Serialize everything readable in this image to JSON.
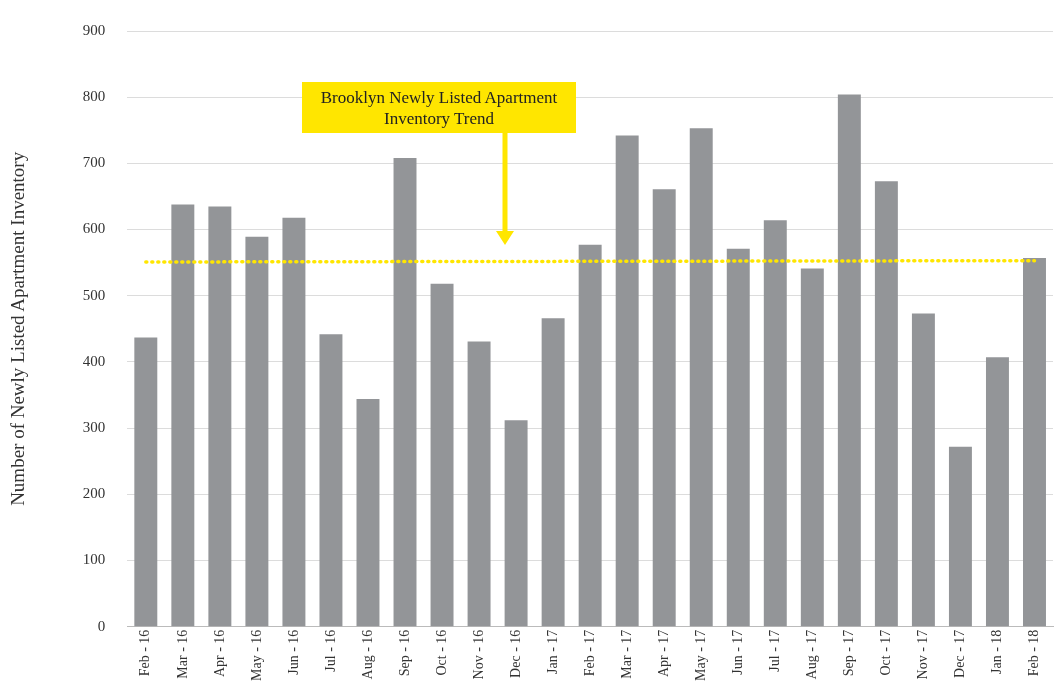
{
  "chart_data": {
    "type": "bar",
    "ylabel": "Number of Newly Listed Apartment Inventory",
    "categories": [
      "Feb - 16",
      "Mar - 16",
      "Apr - 16",
      "May - 16",
      "Jun - 16",
      "Jul - 16",
      "Aug - 16",
      "Sep - 16",
      "Oct - 16",
      "Nov - 16",
      "Dec - 16",
      "Jan - 17",
      "Feb - 17",
      "Mar - 17",
      "Apr - 17",
      "May - 17",
      "Jun - 17",
      "Jul - 17",
      "Aug - 17",
      "Sep - 17",
      "Oct - 17",
      "Nov - 17",
      "Dec - 17",
      "Jan - 18",
      "Feb - 18"
    ],
    "series": [
      {
        "color": "#939598",
        "values": [
          437,
          638,
          635,
          589,
          618,
          442,
          344,
          708,
          518,
          431,
          312,
          466,
          577,
          742,
          661,
          753,
          571,
          614,
          541,
          804,
          673,
          473,
          272,
          407,
          557
        ]
      },
      {
        "type": "line",
        "color": "#ffe600",
        "line_style": "dotted",
        "marker": "none",
        "x": [
          "Feb - 16",
          "Feb - 18"
        ],
        "values": [
          551,
          553
        ]
      }
    ],
    "ylim": [
      0,
      900
    ],
    "yticks": [
      0,
      100,
      200,
      300,
      400,
      500,
      600,
      700,
      800,
      900
    ],
    "grid": "y",
    "legend": false,
    "annotations": [
      "Brooklyn Newly Listed Apartment Inventory Trend"
    ]
  }
}
